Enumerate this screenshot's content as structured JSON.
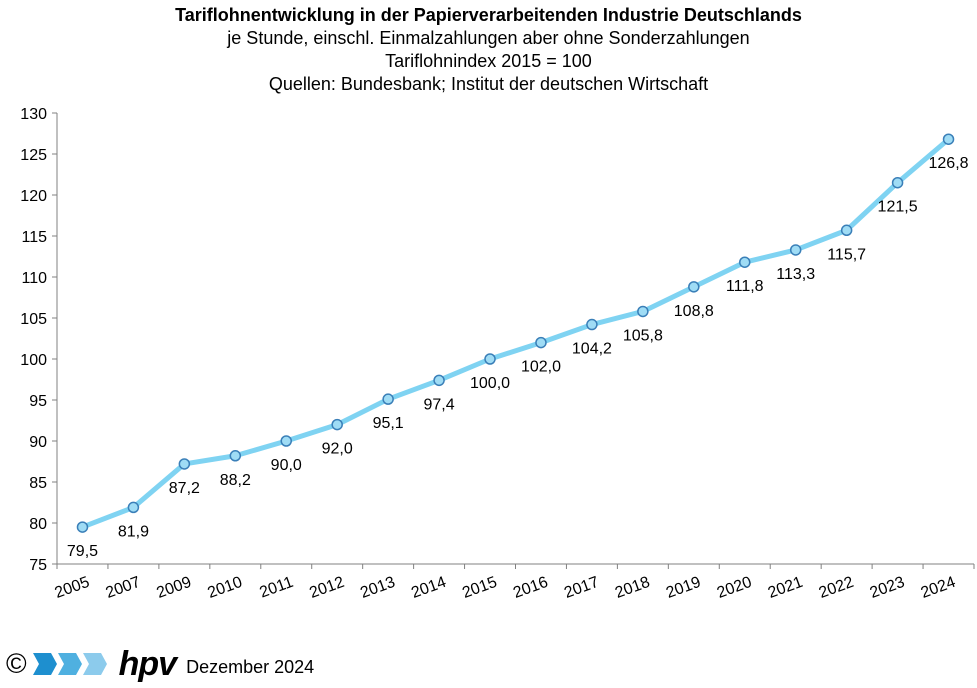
{
  "header": {
    "title": "Tariflohnentwicklung in der Papierverarbeitenden Industrie Deutschlands",
    "subtitle1": "je Stunde, einschl. Einmalzahlungen  aber ohne Sonderzahlungen",
    "subtitle2": "Tariflohnindex 2015 = 100",
    "subtitle3": "Quellen: Bundesbank; Institut der deutschen Wirtschaft"
  },
  "chart_data": {
    "type": "line",
    "categories": [
      "2005",
      "2007",
      "2009",
      "2010",
      "2011",
      "2012",
      "2013",
      "2014",
      "2015",
      "2016",
      "2017",
      "2018",
      "2019",
      "2020",
      "2021",
      "2022",
      "2023",
      "2024"
    ],
    "values": [
      79.5,
      81.9,
      87.2,
      88.2,
      90.0,
      92.0,
      95.1,
      97.4,
      100.0,
      102.0,
      104.2,
      105.8,
      108.8,
      111.8,
      113.3,
      115.7,
      121.5,
      126.8
    ],
    "data_labels": [
      "79,5",
      "81,9",
      "87,2",
      "88,2",
      "90,0",
      "92,0",
      "95,1",
      "97,4",
      "100,0",
      "102,0",
      "104,2",
      "105,8",
      "108,8",
      "111,8",
      "113,3",
      "115,7",
      "121,5",
      "126,8"
    ],
    "y_ticks": [
      "75",
      "80",
      "85",
      "90",
      "95",
      "100",
      "105",
      "110",
      "115",
      "120",
      "125",
      "130"
    ],
    "ylim": [
      75,
      130
    ],
    "y_step": 5,
    "grid": false,
    "legend": "none",
    "line_color": "#7fd3f2",
    "marker_fill": "#9fdcf5",
    "marker_stroke": "#3a7fb8"
  },
  "footer": {
    "copyright": "©",
    "logo_text": "hpv",
    "date": "Dezember 2024",
    "logo_colors": [
      "#1e8fcf",
      "#4fb0e0",
      "#8ccbec"
    ]
  }
}
